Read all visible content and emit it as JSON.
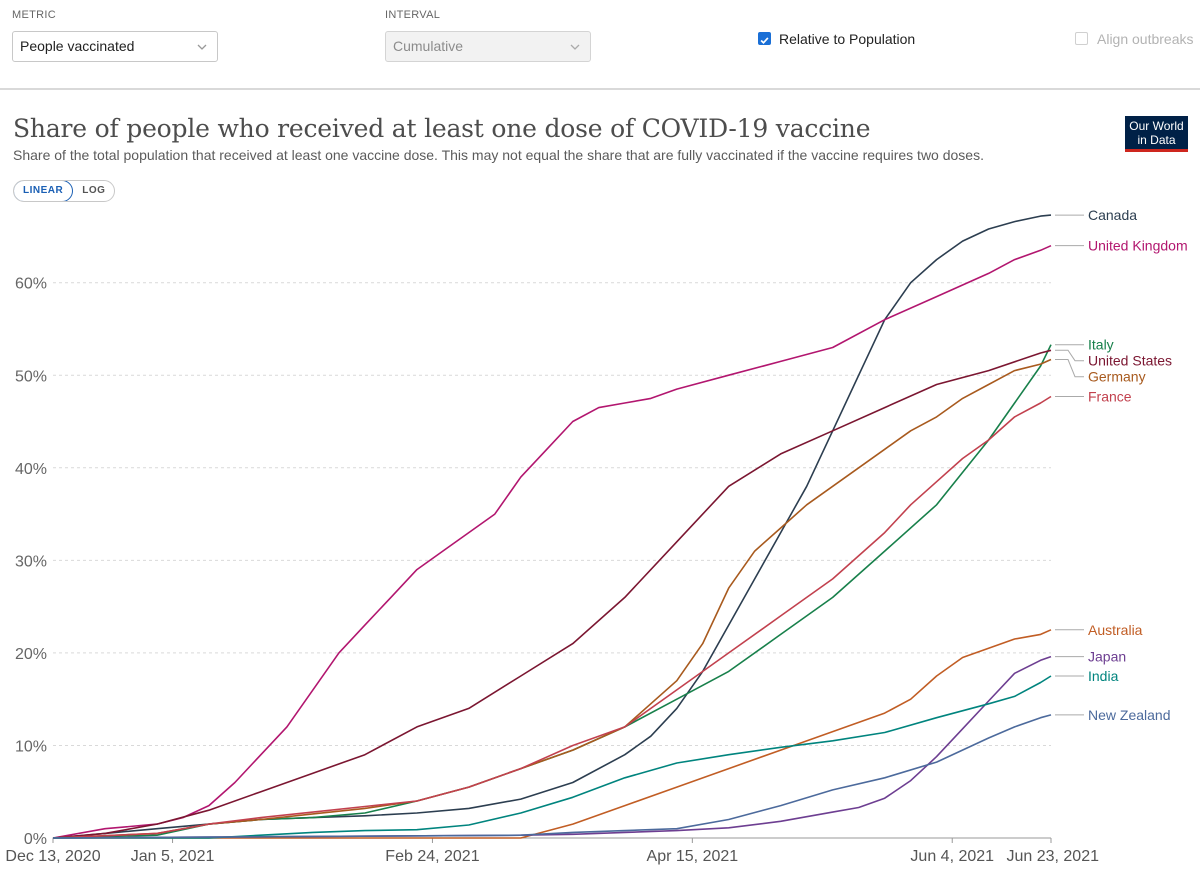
{
  "controls": {
    "metric_label": "METRIC",
    "metric_value": "People vaccinated",
    "interval_label": "INTERVAL",
    "interval_value": "Cumulative",
    "relative_label": "Relative to Population",
    "relative_checked": true,
    "align_label": "Align outbreaks",
    "align_checked": false
  },
  "header": {
    "title": "Share of people who received at least one dose of COVID-19 vaccine",
    "subtitle": "Share of the total population that received at least one vaccine dose. This may not equal the share that are fully vaccinated if the vaccine requires two doses.",
    "logo_line1": "Our World",
    "logo_line2": "in Data"
  },
  "scale": {
    "linear": "LINEAR",
    "log": "LOG",
    "active": "linear"
  },
  "chart_data": {
    "type": "line",
    "title": "Share of people who received at least one dose of COVID-19 vaccine",
    "xlabel": "",
    "ylabel": "",
    "x_unit": "days since Dec 13, 2020",
    "xlim": [
      0,
      192
    ],
    "ylim": [
      0,
      70
    ],
    "yticks": [
      {
        "value": 0,
        "label": "0%"
      },
      {
        "value": 10,
        "label": "10%"
      },
      {
        "value": 20,
        "label": "20%"
      },
      {
        "value": 30,
        "label": "30%"
      },
      {
        "value": 40,
        "label": "40%"
      },
      {
        "value": 50,
        "label": "50%"
      },
      {
        "value": 60,
        "label": "60%"
      }
    ],
    "xticks": [
      {
        "value": 0,
        "label": "Dec 13, 2020"
      },
      {
        "value": 23,
        "label": "Jan 5, 2021"
      },
      {
        "value": 73,
        "label": "Feb 24, 2021"
      },
      {
        "value": 123,
        "label": "Apr 15, 2021"
      },
      {
        "value": 173,
        "label": "Jun 4, 2021"
      },
      {
        "value": 192,
        "label": "Jun 23, 2021"
      }
    ],
    "series": [
      {
        "name": "Canada",
        "color": "#2c3e50",
        "x": [
          0,
          10,
          20,
          30,
          40,
          50,
          60,
          70,
          80,
          90,
          100,
          110,
          115,
          120,
          125,
          130,
          135,
          140,
          145,
          150,
          155,
          160,
          165,
          170,
          175,
          180,
          185,
          190,
          192
        ],
        "y": [
          0,
          0.5,
          1,
          1.5,
          2,
          2.2,
          2.4,
          2.7,
          3.2,
          4.2,
          6,
          9,
          11,
          14,
          18,
          23,
          28,
          33,
          38,
          44,
          50,
          56,
          60,
          62.5,
          64.5,
          65.8,
          66.6,
          67.2,
          67.3
        ]
      },
      {
        "name": "United Kingdom",
        "color": "#b2166f",
        "x": [
          0,
          10,
          20,
          25,
          30,
          35,
          40,
          45,
          50,
          55,
          60,
          65,
          70,
          75,
          80,
          85,
          90,
          95,
          100,
          105,
          110,
          115,
          120,
          130,
          140,
          150,
          160,
          170,
          180,
          185,
          190,
          192
        ],
        "y": [
          0,
          1,
          1.5,
          2.2,
          3.5,
          6,
          9,
          12,
          16,
          20,
          23,
          26,
          29,
          31,
          33,
          35,
          39,
          42,
          45,
          46.5,
          47,
          47.5,
          48.5,
          50,
          51.5,
          53,
          56,
          58.5,
          61,
          62.5,
          63.5,
          64
        ]
      },
      {
        "name": "Italy",
        "color": "#18804b",
        "x": [
          0,
          20,
          30,
          40,
          50,
          60,
          70,
          80,
          90,
          100,
          110,
          120,
          130,
          140,
          150,
          160,
          170,
          180,
          185,
          190,
          192
        ],
        "y": [
          0,
          0.3,
          1.5,
          2,
          2.2,
          2.7,
          4,
          5.5,
          7.5,
          9.5,
          12,
          15,
          18,
          22,
          26,
          31,
          36,
          43,
          47,
          51,
          53.3
        ]
      },
      {
        "name": "United States",
        "color": "#7b1631",
        "x": [
          0,
          10,
          20,
          30,
          40,
          50,
          60,
          70,
          80,
          90,
          100,
          110,
          120,
          130,
          140,
          150,
          160,
          170,
          180,
          190,
          192
        ],
        "y": [
          0,
          0.5,
          1.5,
          3,
          5,
          7,
          9,
          12,
          14,
          17.5,
          21,
          26,
          32,
          38,
          41.5,
          44,
          46.5,
          49,
          50.5,
          52.4,
          52.7
        ]
      },
      {
        "name": "Germany",
        "color": "#a85a1e",
        "x": [
          0,
          20,
          30,
          40,
          50,
          60,
          70,
          80,
          90,
          100,
          110,
          120,
          125,
          130,
          135,
          140,
          145,
          150,
          155,
          160,
          165,
          170,
          175,
          180,
          185,
          190,
          192
        ],
        "y": [
          0,
          0.5,
          1.5,
          2,
          2.6,
          3.2,
          4,
          5.5,
          7.5,
          9.5,
          12,
          17,
          21,
          27,
          31,
          33.5,
          36,
          38,
          40,
          42,
          44,
          45.5,
          47.5,
          49,
          50.5,
          51.2,
          51.7
        ]
      },
      {
        "name": "France",
        "color": "#c2414e",
        "x": [
          0,
          20,
          30,
          40,
          50,
          60,
          70,
          80,
          90,
          100,
          110,
          120,
          130,
          140,
          150,
          160,
          165,
          170,
          175,
          180,
          185,
          190,
          192
        ],
        "y": [
          0,
          0.5,
          1.5,
          2.2,
          2.8,
          3.4,
          4,
          5.5,
          7.5,
          10,
          12,
          16,
          20,
          24,
          28,
          33,
          36,
          38.5,
          41,
          43,
          45.5,
          47,
          47.7
        ]
      },
      {
        "name": "Australia",
        "color": "#c15d24",
        "x": [
          0,
          90,
          100,
          110,
          120,
          130,
          140,
          150,
          160,
          165,
          170,
          175,
          180,
          185,
          190,
          192
        ],
        "y": [
          0,
          0,
          1.5,
          3.5,
          5.5,
          7.5,
          9.5,
          11.5,
          13.5,
          15,
          17.5,
          19.5,
          20.5,
          21.5,
          22,
          22.5
        ]
      },
      {
        "name": "Japan",
        "color": "#6d3e91",
        "x": [
          0,
          90,
          100,
          110,
          120,
          130,
          140,
          150,
          155,
          160,
          165,
          170,
          175,
          180,
          185,
          190,
          192
        ],
        "y": [
          0,
          0.3,
          0.4,
          0.6,
          0.8,
          1.1,
          1.8,
          2.8,
          3.3,
          4.3,
          6.2,
          8.8,
          11.8,
          14.8,
          17.8,
          19.2,
          19.6
        ]
      },
      {
        "name": "India",
        "color": "#00847e",
        "x": [
          0,
          30,
          40,
          50,
          60,
          70,
          80,
          90,
          100,
          110,
          120,
          130,
          140,
          150,
          160,
          170,
          180,
          185,
          190,
          192
        ],
        "y": [
          0,
          0,
          0.3,
          0.6,
          0.8,
          0.9,
          1.4,
          2.7,
          4.4,
          6.5,
          8.1,
          9,
          9.8,
          10.5,
          11.4,
          13,
          14.5,
          15.3,
          16.8,
          17.5
        ]
      },
      {
        "name": "New Zealand",
        "color": "#4c6a9c",
        "x": [
          0,
          90,
          100,
          110,
          120,
          130,
          140,
          150,
          160,
          170,
          180,
          185,
          190,
          192
        ],
        "y": [
          0,
          0.3,
          0.6,
          0.8,
          1,
          2,
          3.5,
          5.2,
          6.5,
          8.2,
          10.8,
          12,
          13,
          13.3
        ]
      }
    ],
    "label_order": [
      "Canada",
      "United Kingdom",
      "Italy",
      "United States",
      "Germany",
      "France",
      "Australia",
      "Japan",
      "India",
      "New Zealand"
    ]
  }
}
